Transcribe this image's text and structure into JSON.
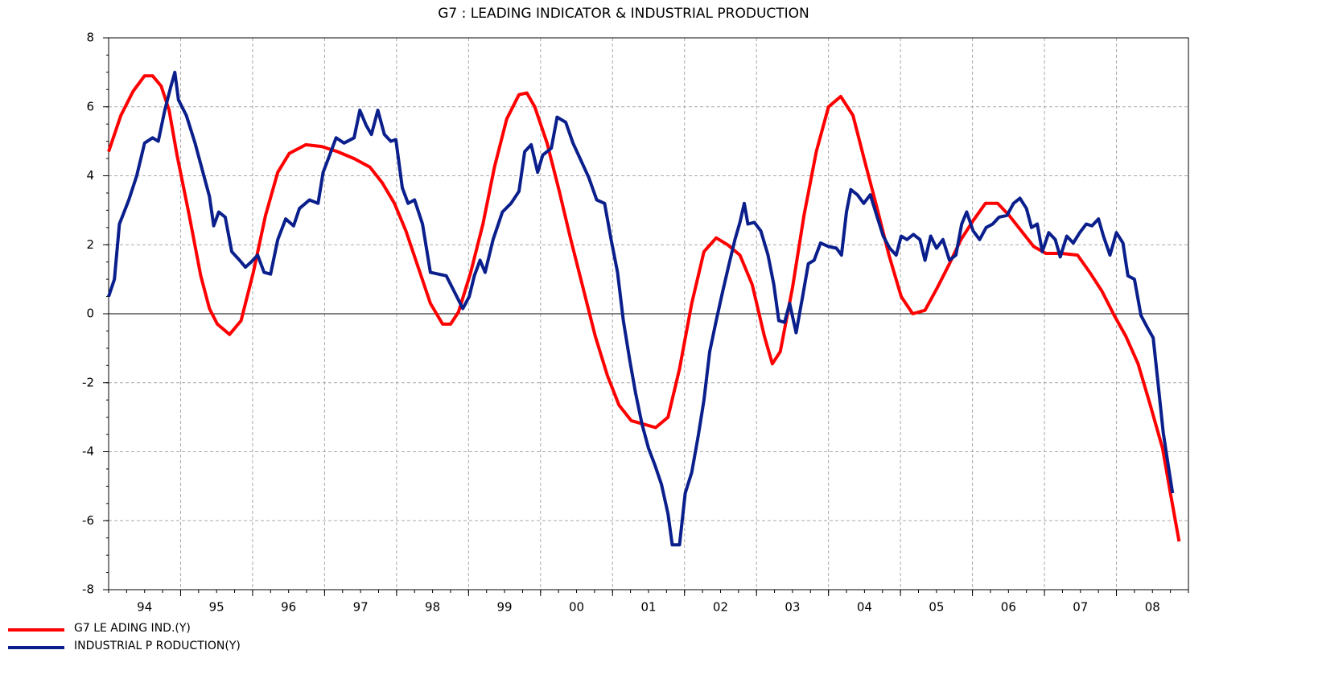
{
  "chart_data": {
    "type": "line",
    "title": "G7 : LEADING INDICATOR & INDUSTRIAL PRODUCTION",
    "xlim": [
      1994,
      2009
    ],
    "xticks": [
      {
        "value": 1994.5,
        "label": "94"
      },
      {
        "value": 1995.5,
        "label": "95"
      },
      {
        "value": 1996.5,
        "label": "96"
      },
      {
        "value": 1997.5,
        "label": "97"
      },
      {
        "value": 1998.5,
        "label": "98"
      },
      {
        "value": 1999.5,
        "label": "99"
      },
      {
        "value": 2000.5,
        "label": "00"
      },
      {
        "value": 2001.5,
        "label": "01"
      },
      {
        "value": 2002.5,
        "label": "02"
      },
      {
        "value": 2003.5,
        "label": "03"
      },
      {
        "value": 2004.5,
        "label": "04"
      },
      {
        "value": 2005.5,
        "label": "05"
      },
      {
        "value": 2006.5,
        "label": "06"
      },
      {
        "value": 2007.5,
        "label": "07"
      },
      {
        "value": 2008.5,
        "label": "08"
      }
    ],
    "xgrid": [
      1995,
      1996,
      1997,
      1998,
      1999,
      2000,
      2001,
      2002,
      2003,
      2004,
      2005,
      2006,
      2007,
      2008
    ],
    "ylim": [
      -8,
      8
    ],
    "yticks": [
      -8,
      -6,
      -4,
      -2,
      0,
      2,
      4,
      6,
      8
    ],
    "grid": true,
    "legend": "bottom-left",
    "series": [
      {
        "name": "G7 LE ADING IND.(Y)",
        "color": "#ff0000",
        "x": [
          1994.0,
          1994.17,
          1994.34,
          1994.5,
          1994.61,
          1994.73,
          1994.84,
          1994.95,
          1995.12,
          1995.28,
          1995.4,
          1995.51,
          1995.68,
          1995.84,
          1996.01,
          1996.18,
          1996.35,
          1996.51,
          1996.74,
          1996.96,
          1997.18,
          1997.41,
          1997.63,
          1997.8,
          1997.97,
          1998.13,
          1998.3,
          1998.47,
          1998.64,
          1998.75,
          1998.86,
          1999.03,
          1999.2,
          1999.36,
          1999.53,
          1999.7,
          1999.81,
          1999.92,
          2000.09,
          2000.26,
          2000.42,
          2000.59,
          2000.76,
          2000.93,
          2001.09,
          2001.26,
          2001.43,
          2001.6,
          2001.77,
          2001.93,
          2002.1,
          2002.27,
          2002.44,
          2002.6,
          2002.77,
          2002.94,
          2003.11,
          2003.22,
          2003.33,
          2003.5,
          2003.66,
          2003.83,
          2004.0,
          2004.17,
          2004.34,
          2004.5,
          2004.67,
          2004.84,
          2005.01,
          2005.17,
          2005.34,
          2005.51,
          2005.68,
          2005.84,
          2006.01,
          2006.18,
          2006.35,
          2006.51,
          2006.68,
          2006.85,
          2007.02,
          2007.24,
          2007.46,
          2007.63,
          2007.8,
          2007.97,
          2008.13,
          2008.3,
          2008.47,
          2008.64,
          2008.75,
          2008.87
        ],
        "values": [
          4.7,
          5.75,
          6.45,
          6.9,
          6.9,
          6.6,
          5.9,
          4.6,
          2.85,
          1.1,
          0.15,
          -0.3,
          -0.6,
          -0.2,
          1.2,
          2.85,
          4.1,
          4.65,
          4.9,
          4.85,
          4.7,
          4.5,
          4.25,
          3.8,
          3.2,
          2.4,
          1.35,
          0.3,
          -0.3,
          -0.3,
          0.05,
          1.2,
          2.6,
          4.25,
          5.65,
          6.35,
          6.4,
          6.0,
          4.95,
          3.55,
          2.15,
          0.75,
          -0.65,
          -1.8,
          -2.65,
          -3.1,
          -3.2,
          -3.3,
          -3.0,
          -1.6,
          0.3,
          1.8,
          2.2,
          2.0,
          1.7,
          0.85,
          -0.65,
          -1.45,
          -1.1,
          0.75,
          2.85,
          4.7,
          6.0,
          6.3,
          5.75,
          4.45,
          3.1,
          1.7,
          0.5,
          0,
          0.1,
          0.75,
          1.45,
          2.15,
          2.7,
          3.2,
          3.2,
          2.85,
          2.4,
          1.95,
          1.75,
          1.75,
          1.7,
          1.2,
          0.65,
          -0.05,
          -0.65,
          -1.45,
          -2.65,
          -3.9,
          -5.2,
          -6.6
        ]
      },
      {
        "name": "INDUSTRIAL P RODUCTION(Y)",
        "color": "#0a1f8c",
        "x": [
          1994.0,
          1994.08,
          1994.15,
          1994.28,
          1994.39,
          1994.5,
          1994.61,
          1994.69,
          1994.78,
          1994.86,
          1994.92,
          1994.97,
          1995.08,
          1995.2,
          1995.31,
          1995.4,
          1995.46,
          1995.53,
          1995.62,
          1995.71,
          1995.82,
          1995.9,
          1995.98,
          1996.07,
          1996.16,
          1996.25,
          1996.35,
          1996.46,
          1996.57,
          1996.65,
          1996.79,
          1996.91,
          1996.98,
          1997.07,
          1997.16,
          1997.27,
          1997.41,
          1997.49,
          1997.58,
          1997.65,
          1997.74,
          1997.83,
          1997.92,
          1997.99,
          1998.08,
          1998.16,
          1998.25,
          1998.36,
          1998.47,
          1998.58,
          1998.69,
          1998.8,
          1998.92,
          1999.01,
          1999.08,
          1999.16,
          1999.23,
          1999.34,
          1999.47,
          1999.59,
          1999.7,
          1999.78,
          1999.87,
          1999.96,
          2000.03,
          2000.15,
          2000.23,
          2000.35,
          2000.45,
          2000.56,
          2000.67,
          2000.78,
          2000.89,
          2000.98,
          2001.07,
          2001.15,
          2001.24,
          2001.32,
          2001.41,
          2001.5,
          2001.59,
          2001.68,
          2001.77,
          2001.83,
          2001.93,
          2002.01,
          2002.1,
          2002.19,
          2002.27,
          2002.35,
          2002.44,
          2002.53,
          2002.62,
          2002.7,
          2002.77,
          2002.83,
          2002.88,
          2002.97,
          2003.06,
          2003.16,
          2003.24,
          2003.31,
          2003.39,
          2003.46,
          2003.55,
          2003.64,
          2003.72,
          2003.8,
          2003.89,
          2004.0,
          2004.11,
          2004.18,
          2004.25,
          2004.31,
          2004.4,
          2004.49,
          2004.58,
          2004.67,
          2004.76,
          2004.85,
          2004.94,
          2005.01,
          2005.09,
          2005.18,
          2005.27,
          2005.34,
          2005.42,
          2005.5,
          2005.59,
          2005.68,
          2005.77,
          2005.85,
          2005.92,
          2006.01,
          2006.1,
          2006.19,
          2006.28,
          2006.37,
          2006.48,
          2006.57,
          2006.66,
          2006.75,
          2006.82,
          2006.9,
          2006.97,
          2007.06,
          2007.15,
          2007.22,
          2007.31,
          2007.4,
          2007.49,
          2007.58,
          2007.66,
          2007.75,
          2007.82,
          2007.91,
          2008.0,
          2008.09,
          2008.16,
          2008.25,
          2008.34,
          2008.43,
          2008.51,
          2008.58,
          2008.65,
          2008.72,
          2008.78
        ],
        "values": [
          0.5,
          1.0,
          2.6,
          3.3,
          4.0,
          4.95,
          5.1,
          5.0,
          5.9,
          6.55,
          7.0,
          6.2,
          5.75,
          4.95,
          4.1,
          3.4,
          2.55,
          2.95,
          2.8,
          1.8,
          1.55,
          1.35,
          1.5,
          1.7,
          1.2,
          1.15,
          2.15,
          2.75,
          2.55,
          3.05,
          3.3,
          3.2,
          4.1,
          4.6,
          5.1,
          4.95,
          5.1,
          5.9,
          5.45,
          5.2,
          5.9,
          5.2,
          5.0,
          5.05,
          3.65,
          3.2,
          3.3,
          2.6,
          1.2,
          1.15,
          1.1,
          0.65,
          0.15,
          0.5,
          1.1,
          1.55,
          1.2,
          2.15,
          2.95,
          3.2,
          3.55,
          4.7,
          4.9,
          4.1,
          4.6,
          4.8,
          5.7,
          5.55,
          4.95,
          4.45,
          3.95,
          3.3,
          3.2,
          2.15,
          1.2,
          -0.2,
          -1.35,
          -2.3,
          -3.2,
          -3.9,
          -4.4,
          -4.95,
          -5.8,
          -6.7,
          -6.7,
          -5.2,
          -4.6,
          -3.55,
          -2.5,
          -1.1,
          -0.2,
          0.65,
          1.45,
          2.15,
          2.65,
          3.2,
          2.6,
          2.65,
          2.4,
          1.7,
          0.85,
          -0.2,
          -0.25,
          0.3,
          -0.55,
          0.5,
          1.45,
          1.55,
          2.05,
          1.95,
          1.9,
          1.7,
          2.95,
          3.6,
          3.45,
          3.2,
          3.45,
          2.85,
          2.25,
          1.9,
          1.7,
          2.25,
          2.15,
          2.3,
          2.15,
          1.55,
          2.25,
          1.9,
          2.15,
          1.55,
          1.7,
          2.6,
          2.95,
          2.4,
          2.15,
          2.5,
          2.6,
          2.8,
          2.85,
          3.2,
          3.35,
          3.05,
          2.5,
          2.6,
          1.8,
          2.35,
          2.15,
          1.65,
          2.25,
          2.05,
          2.35,
          2.6,
          2.55,
          2.75,
          2.25,
          1.7,
          2.35,
          2.05,
          1.1,
          1.0,
          -0.05,
          -0.4,
          -0.7,
          -2.05,
          -3.45,
          -4.4,
          -5.2
        ]
      }
    ]
  }
}
